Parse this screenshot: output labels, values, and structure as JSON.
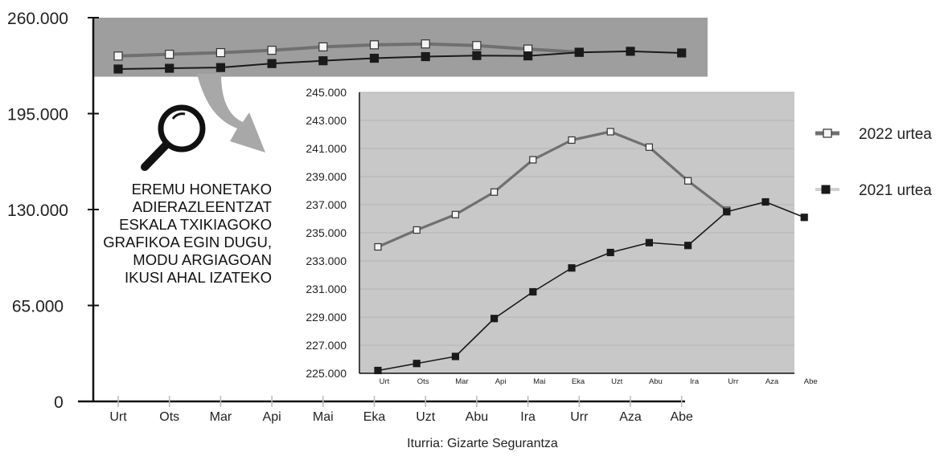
{
  "source": "Iturria: Gizarte Segurantza",
  "annotation_lines": [
    "EREMU HONETAKO",
    "ADIERAZLEENTZAT",
    "ESKALA TXIKIAGOKO",
    "GRAFIKOA EGIN DUGU,",
    "MODU ARGIAGOAN",
    "IKUSI AHAL IZATEKO"
  ],
  "icons": {
    "magnifier": "magnifying-glass-icon",
    "arrow": "curved-arrow-icon"
  },
  "colors": {
    "series_2022": "#707070",
    "series_2021": "#1a1a1a",
    "highlight_band": "#9e9e9e",
    "inset_background": "#c8c8c8",
    "arrow": "#a8a8a8"
  },
  "chart_data": [
    {
      "type": "line",
      "title": "",
      "xlabel": "",
      "ylabel": "",
      "categories": [
        "Urt",
        "Ots",
        "Mar",
        "Api",
        "Mai",
        "Eka",
        "Uzt",
        "Abu",
        "Ira",
        "Urr",
        "Aza",
        "Abe"
      ],
      "yticks": [
        "0",
        "65.000",
        "130.000",
        "195.000",
        "260.000"
      ],
      "ylim": [
        0,
        260000
      ],
      "highlight_band": [
        220000,
        260000
      ],
      "grid": false,
      "series": [
        {
          "name": "2022 urtea",
          "values": [
            234000,
            235200,
            236300,
            237900,
            240200,
            241600,
            242200,
            241100,
            238700,
            236600,
            null,
            null
          ]
        },
        {
          "name": "2021 urtea",
          "values": [
            225200,
            225700,
            226200,
            228900,
            230800,
            232500,
            233600,
            234300,
            234100,
            236500,
            237200,
            236100
          ]
        }
      ]
    },
    {
      "type": "line",
      "title": "",
      "xlabel": "",
      "ylabel": "",
      "categories": [
        "Urt",
        "Ots",
        "Mar",
        "Api",
        "Mai",
        "Eka",
        "Uzt",
        "Abu",
        "Ira",
        "Urr",
        "Aza",
        "Abe"
      ],
      "yticks": [
        "225.000",
        "227.000",
        "229.000",
        "231.000",
        "233.000",
        "235.000",
        "237.000",
        "239.000",
        "241.000",
        "243.000",
        "245.000"
      ],
      "ylim": [
        225000,
        245000
      ],
      "grid": true,
      "legend_position": "right",
      "series": [
        {
          "name": "2022 urtea",
          "values": [
            234000,
            235200,
            236300,
            237900,
            240200,
            241600,
            242200,
            241100,
            238700,
            236600,
            null,
            null
          ]
        },
        {
          "name": "2021 urtea",
          "values": [
            225200,
            225700,
            226200,
            228900,
            230800,
            232500,
            233600,
            234300,
            234100,
            236500,
            237200,
            236100
          ]
        }
      ]
    }
  ]
}
